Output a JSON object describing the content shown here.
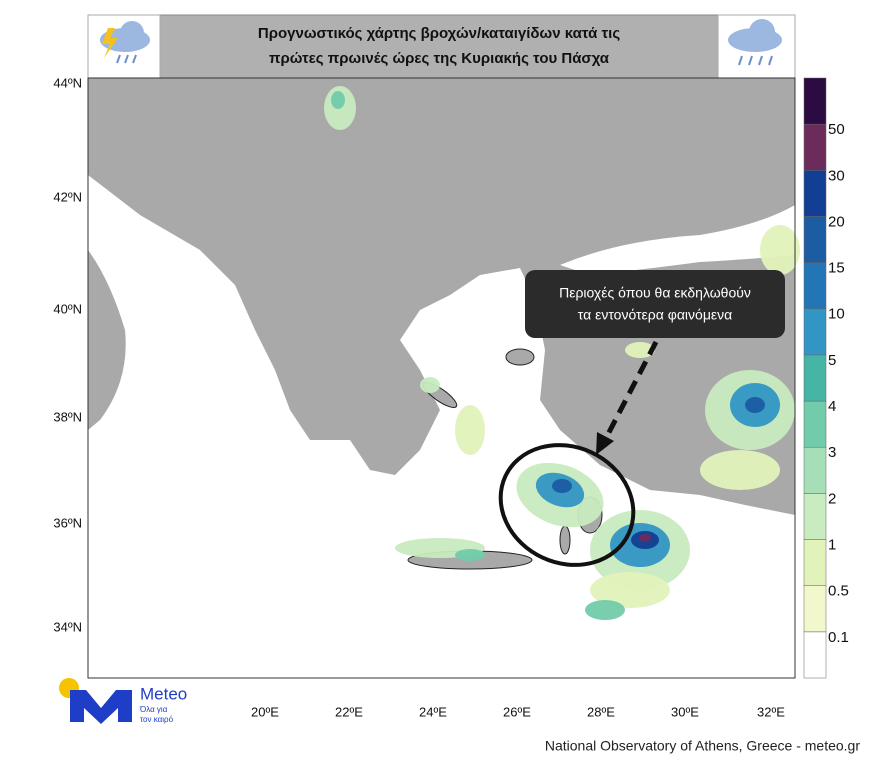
{
  "header": {
    "title_lines": [
      "Προγνωστικός χάρτης βροχών/καταιγίδων κατά τις",
      "πρώτες πρωινές ώρες της Κυριακής του Πάσχα"
    ]
  },
  "map": {
    "lat_labels": [
      "44ºN",
      "42ºN",
      "40ºN",
      "38ºN",
      "36ºN",
      "34ºN"
    ],
    "lon_labels": [
      "20ºE",
      "22ºE",
      "24ºE",
      "26ºE",
      "28ºE",
      "30ºE",
      "32ºE"
    ],
    "callout": [
      "Περιοχές όπου θα εκδηλωθούν",
      "τα εντονότερα φαινόμενα"
    ]
  },
  "colorbar": {
    "labels": [
      0.1,
      0.5,
      1,
      2,
      3,
      4,
      5,
      10,
      15,
      20,
      30,
      50
    ],
    "colors": [
      "#ffffff",
      "#f3f7cc",
      "#e2f2bb",
      "#c8ebbf",
      "#a6dfb7",
      "#72cbaa",
      "#47b5a5",
      "#3296c4",
      "#2276b5",
      "#1b5ca3",
      "#123e93",
      "#6b2c5c",
      "#2b0b42"
    ]
  },
  "logo": {
    "name": "Meteo",
    "tagline": [
      "Όλα για",
      "τον καιρό"
    ]
  },
  "footer": "National Observatory of Athens, Greece - meteo.gr"
}
